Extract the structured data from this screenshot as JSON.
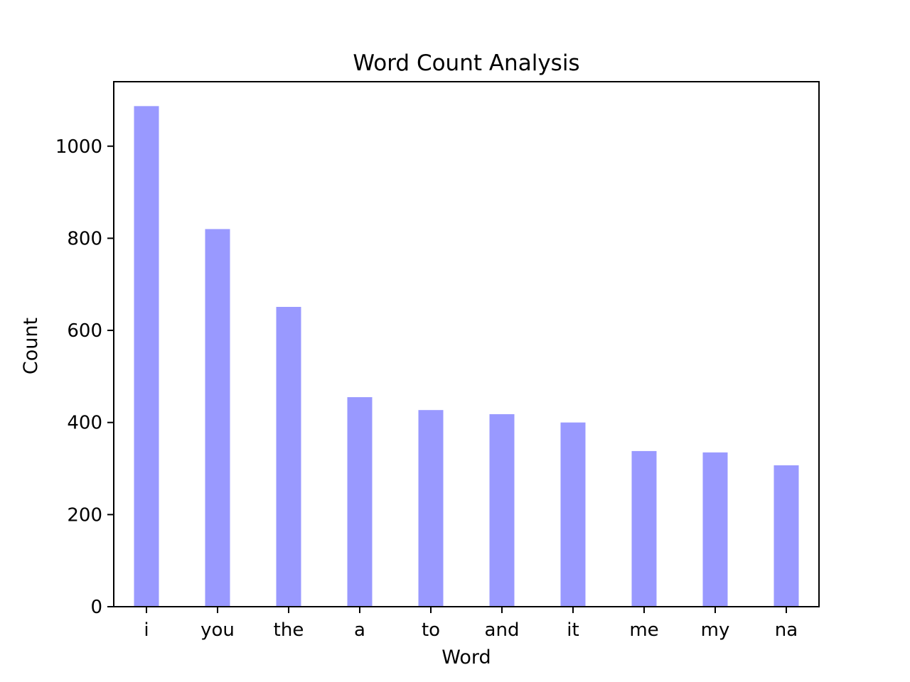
{
  "chart_data": {
    "type": "bar",
    "title": "Word Count Analysis",
    "xlabel": "Word",
    "ylabel": "Count",
    "categories": [
      "i",
      "you",
      "the",
      "a",
      "to",
      "and",
      "it",
      "me",
      "my",
      "na"
    ],
    "values": [
      1087,
      820,
      651,
      455,
      427,
      418,
      400,
      338,
      335,
      307
    ],
    "ylim": [
      0,
      1140
    ],
    "yticks": [
      0,
      200,
      400,
      600,
      800,
      1000
    ],
    "grid": false,
    "legend": "none",
    "bar_color": "#9999ff",
    "axis_color": "#000000"
  }
}
